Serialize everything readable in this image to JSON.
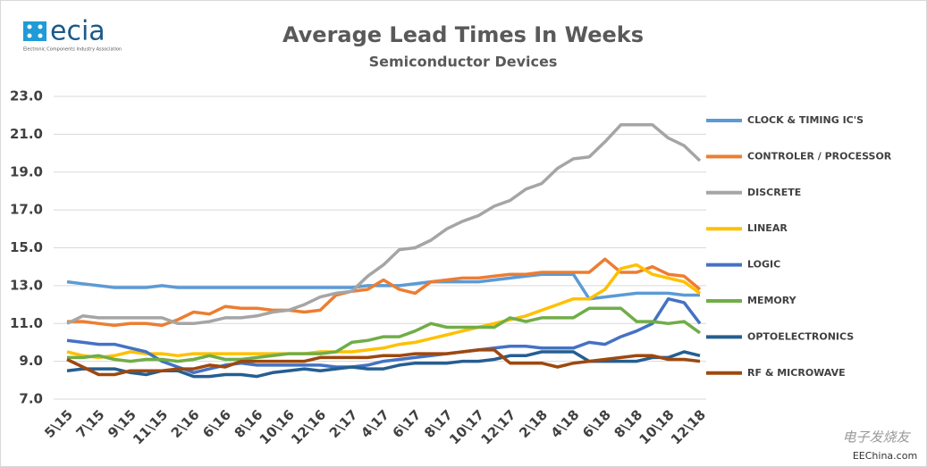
{
  "chart_data": {
    "type": "line",
    "title": "Average Lead Times In Weeks",
    "subtitle": "Semiconductor Devices",
    "logo": "ecia",
    "logo_subtitle": "Electronic Components Industry Association",
    "watermark": [
      "电子发烧友",
      "EEChina.com"
    ],
    "grid": true,
    "legend": "right",
    "categories": [
      "5\\15",
      null,
      "7\\15",
      null,
      "9\\15",
      null,
      "11\\15",
      null,
      "2\\16",
      null,
      "6\\16",
      null,
      "8\\16",
      null,
      "10\\16",
      null,
      "12\\16",
      null,
      "2\\17",
      null,
      "4\\17",
      null,
      "6\\17",
      null,
      "8\\17",
      null,
      "10\\17",
      null,
      "12\\17",
      null,
      "2\\18",
      null,
      "4\\18",
      null,
      "6\\18",
      null,
      "8\\18",
      null,
      "10\\18",
      null,
      "12\\18"
    ],
    "ylim": [
      7,
      23
    ],
    "yticks": [
      {
        "value": 7,
        "label": "7.0"
      },
      {
        "value": 9,
        "label": "9.0"
      },
      {
        "value": 11,
        "label": "11.0"
      },
      {
        "value": 13,
        "label": "13.0"
      },
      {
        "value": 15,
        "label": "15.0"
      },
      {
        "value": 17,
        "label": "17.0"
      },
      {
        "value": 19,
        "label": "19.0"
      },
      {
        "value": 21,
        "label": "21.0"
      },
      {
        "value": 23,
        "label": "23.0"
      }
    ],
    "series": [
      {
        "name": "CLOCK & TIMING IC'S",
        "color": "#5b9bd5",
        "values": [
          13.2,
          13.1,
          13.0,
          12.9,
          12.9,
          12.9,
          13.0,
          12.9,
          12.9,
          12.9,
          12.9,
          12.9,
          12.9,
          12.9,
          12.9,
          12.9,
          12.9,
          12.9,
          12.9,
          13.0,
          13.0,
          13.0,
          13.1,
          13.2,
          13.2,
          13.2,
          13.2,
          13.3,
          13.4,
          13.5,
          13.6,
          13.6,
          13.6,
          12.3,
          12.4,
          12.5,
          12.6,
          12.6,
          12.6,
          12.5,
          12.5
        ]
      },
      {
        "name": "CONTROLER / PROCESSOR",
        "color": "#ed7d31",
        "values": [
          11.1,
          11.1,
          11.0,
          10.9,
          11.0,
          11.0,
          10.9,
          11.2,
          11.6,
          11.5,
          11.9,
          11.8,
          11.8,
          11.7,
          11.7,
          11.6,
          11.7,
          12.5,
          12.7,
          12.8,
          13.3,
          12.8,
          12.6,
          13.2,
          13.3,
          13.4,
          13.4,
          13.5,
          13.6,
          13.6,
          13.7,
          13.7,
          13.7,
          13.7,
          14.4,
          13.7,
          13.7,
          14.0,
          13.6,
          13.5,
          12.8
        ]
      },
      {
        "name": "DISCRETE",
        "color": "#a5a5a5",
        "values": [
          11.0,
          11.4,
          11.3,
          11.3,
          11.3,
          11.3,
          11.3,
          11.0,
          11.0,
          11.1,
          11.3,
          11.3,
          11.4,
          11.6,
          11.7,
          12.0,
          12.4,
          12.6,
          12.7,
          13.5,
          14.1,
          14.9,
          15.0,
          15.4,
          16.0,
          16.4,
          16.7,
          17.2,
          17.5,
          18.1,
          18.4,
          19.2,
          19.7,
          19.8,
          20.6,
          21.5,
          21.5,
          21.5,
          20.8,
          20.4,
          19.6
        ]
      },
      {
        "name": "LINEAR",
        "color": "#ffc000",
        "values": [
          9.5,
          9.3,
          9.2,
          9.3,
          9.5,
          9.4,
          9.4,
          9.3,
          9.4,
          9.4,
          9.4,
          9.4,
          9.4,
          9.4,
          9.4,
          9.4,
          9.5,
          9.5,
          9.5,
          9.6,
          9.7,
          9.9,
          10.0,
          10.2,
          10.4,
          10.6,
          10.8,
          11.0,
          11.2,
          11.4,
          11.7,
          12.0,
          12.3,
          12.3,
          12.8,
          13.9,
          14.1,
          13.6,
          13.4,
          13.2,
          12.6
        ]
      },
      {
        "name": "LOGIC",
        "color": "#4472c4",
        "values": [
          10.1,
          10.0,
          9.9,
          9.9,
          9.7,
          9.5,
          9.0,
          8.7,
          8.4,
          8.6,
          8.8,
          8.9,
          8.8,
          8.8,
          8.8,
          8.8,
          8.8,
          8.7,
          8.7,
          8.8,
          9.0,
          9.1,
          9.2,
          9.3,
          9.4,
          9.5,
          9.6,
          9.7,
          9.8,
          9.8,
          9.7,
          9.7,
          9.7,
          10.0,
          9.9,
          10.3,
          10.6,
          11.0,
          12.3,
          12.1,
          11.0
        ]
      },
      {
        "name": "MEMORY",
        "color": "#70ad47",
        "values": [
          9.2,
          9.2,
          9.3,
          9.1,
          9.0,
          9.1,
          9.1,
          9.0,
          9.1,
          9.3,
          9.1,
          9.1,
          9.2,
          9.3,
          9.4,
          9.4,
          9.4,
          9.5,
          10.0,
          10.1,
          10.3,
          10.3,
          10.6,
          11.0,
          10.8,
          10.8,
          10.8,
          10.8,
          11.3,
          11.1,
          11.3,
          11.3,
          11.3,
          11.8,
          11.8,
          11.8,
          11.1,
          11.1,
          11.0,
          11.1,
          10.5
        ]
      },
      {
        "name": "OPTOELECTRONICS",
        "color": "#255e91",
        "values": [
          8.5,
          8.6,
          8.6,
          8.6,
          8.4,
          8.3,
          8.5,
          8.5,
          8.2,
          8.2,
          8.3,
          8.3,
          8.2,
          8.4,
          8.5,
          8.6,
          8.5,
          8.6,
          8.7,
          8.6,
          8.6,
          8.8,
          8.9,
          8.9,
          8.9,
          9.0,
          9.0,
          9.1,
          9.3,
          9.3,
          9.5,
          9.5,
          9.5,
          9.0,
          9.0,
          9.0,
          9.0,
          9.2,
          9.2,
          9.5,
          9.3
        ]
      },
      {
        "name": "RF & MICROWAVE",
        "color": "#9e480e",
        "values": [
          9.1,
          8.7,
          8.3,
          8.3,
          8.5,
          8.5,
          8.5,
          8.6,
          8.6,
          8.8,
          8.7,
          9.0,
          9.0,
          9.0,
          9.0,
          9.0,
          9.2,
          9.2,
          9.2,
          9.2,
          9.3,
          9.3,
          9.4,
          9.4,
          9.4,
          9.5,
          9.6,
          9.6,
          8.9,
          8.9,
          8.9,
          8.7,
          8.9,
          9.0,
          9.1,
          9.2,
          9.3,
          9.3,
          9.1,
          9.1,
          9.0
        ]
      }
    ]
  }
}
